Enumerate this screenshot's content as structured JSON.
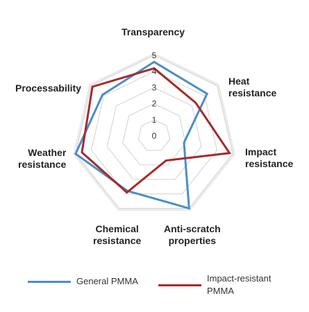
{
  "chart_data": {
    "type": "radar",
    "title": "",
    "axes": [
      "Transparency",
      "Heat\nresistance",
      "Impact\nresistance",
      "Anti-scratch\nproperties",
      "Chemical\nresistance",
      "Weather\nresistance",
      "Processability"
    ],
    "rticks": [
      "0",
      "1",
      "2",
      "3",
      "4",
      "5"
    ],
    "range": [
      0,
      5
    ],
    "grid": true,
    "legend_position": "bottom",
    "series": [
      {
        "name": "General PMMA",
        "color": "#4a8ec8",
        "values": [
          4.6,
          4.2,
          1.9,
          5.0,
          3.8,
          5.0,
          4.1
        ]
      },
      {
        "name": "Impact-resistant PMMA",
        "color": "#a52a2a",
        "values": [
          4.2,
          3.3,
          4.8,
          1.7,
          3.9,
          4.6,
          4.9
        ]
      }
    ]
  }
}
